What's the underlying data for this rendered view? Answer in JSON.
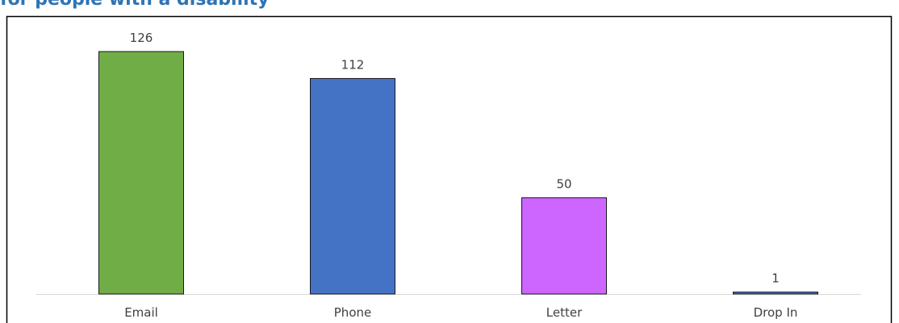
{
  "chart_data": {
    "type": "bar",
    "title": "for people with a disability",
    "categories": [
      "Email",
      "Phone",
      "Letter",
      "Drop In"
    ],
    "values": [
      126,
      112,
      50,
      1
    ],
    "colors": [
      "#70ad47",
      "#4472c4",
      "#cc66ff",
      "#4472c4"
    ]
  }
}
